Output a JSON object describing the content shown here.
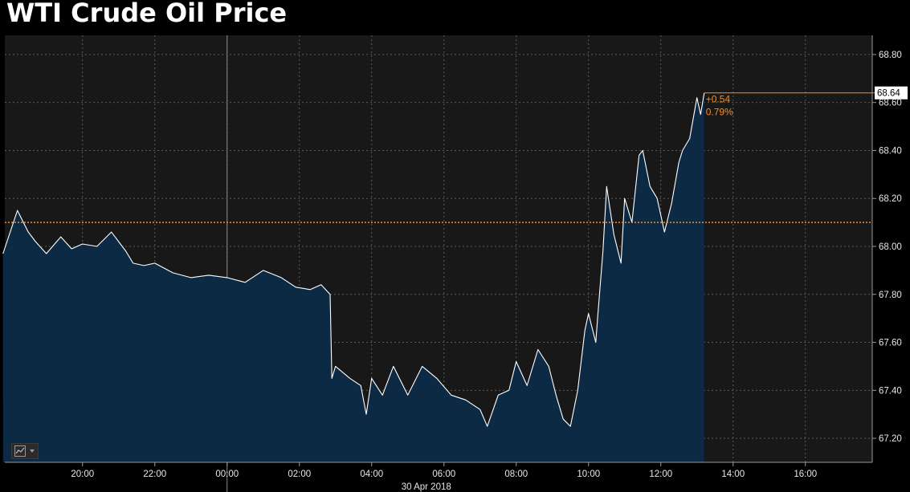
{
  "title": "WTI Crude Oil Price",
  "colors": {
    "background": "#000000",
    "plot_background": "#181818",
    "area_fill": "#0d2a45",
    "line": "#ffffff",
    "reference": "#ff8a1c",
    "grid": "#5a5a5a"
  },
  "chart_icon": "line-chart-icon",
  "chart_data": {
    "type": "area",
    "title": "WTI Crude Oil Price",
    "xlabel": "30 Apr 2018",
    "ylabel": "",
    "x_range_hours": [
      18.0,
      19.75
    ],
    "x_ticks": [
      "20:00",
      "22:00",
      "00:00",
      "02:00",
      "04:00",
      "06:00",
      "08:00",
      "10:00",
      "12:00",
      "14:00",
      "16:00"
    ],
    "x_tick_hours": [
      20,
      22,
      24,
      26,
      28,
      30,
      32,
      34,
      36,
      38,
      40
    ],
    "day_marker": {
      "label": "30 Apr 2018",
      "hour": 24
    },
    "ylim": [
      67.1,
      68.88
    ],
    "y_ticks": [
      "67.20",
      "67.40",
      "67.60",
      "67.80",
      "68.00",
      "68.20",
      "68.40",
      "68.60",
      "68.80"
    ],
    "y_tick_values": [
      67.2,
      67.4,
      67.6,
      67.8,
      68.0,
      68.2,
      68.4,
      68.6,
      68.8
    ],
    "reference_value": 68.1,
    "last_value": "68.64",
    "last_value_num": 68.64,
    "change": "+0.54",
    "change_pct": "0.79%",
    "grid": true,
    "series": [
      {
        "x": [
          17.8,
          18.2,
          18.5,
          18.7,
          19.0,
          19.4,
          19.7,
          20.0,
          20.4,
          20.8,
          21.2,
          21.4,
          21.7,
          22.0,
          22.5,
          23.0,
          23.5,
          24.0,
          24.5,
          25.0,
          25.5,
          25.9,
          26.3,
          26.6,
          26.85,
          26.9,
          27.0,
          27.4,
          27.7,
          27.85,
          28.0,
          28.3,
          28.6,
          29.0,
          29.4,
          29.8,
          30.2,
          30.6,
          31.0,
          31.2,
          31.5,
          31.8,
          32.0,
          32.3,
          32.6,
          32.9,
          33.1,
          33.3,
          33.5,
          33.7,
          33.9,
          34.0,
          34.2,
          34.25,
          34.4,
          34.5,
          34.7,
          34.9,
          35.0,
          35.2,
          35.4,
          35.5,
          35.7,
          35.9,
          36.1,
          36.3,
          36.5,
          36.6,
          36.8,
          37.0,
          37.1,
          37.2
        ],
        "values": [
          67.97,
          68.15,
          68.06,
          68.02,
          67.97,
          68.04,
          67.99,
          68.01,
          68.0,
          68.06,
          67.98,
          67.93,
          67.92,
          67.93,
          67.89,
          67.87,
          67.88,
          67.87,
          67.85,
          67.9,
          67.87,
          67.83,
          67.82,
          67.84,
          67.8,
          67.45,
          67.5,
          67.45,
          67.42,
          67.3,
          67.45,
          67.38,
          67.5,
          67.38,
          67.5,
          67.45,
          67.38,
          67.36,
          67.32,
          67.25,
          67.38,
          67.4,
          67.52,
          67.42,
          67.57,
          67.5,
          67.38,
          67.28,
          67.25,
          67.4,
          67.65,
          67.72,
          67.6,
          67.7,
          67.98,
          68.25,
          68.05,
          67.93,
          68.2,
          68.1,
          68.38,
          68.4,
          68.25,
          68.2,
          68.06,
          68.18,
          68.35,
          68.4,
          68.45,
          68.62,
          68.55,
          68.64
        ]
      }
    ]
  }
}
